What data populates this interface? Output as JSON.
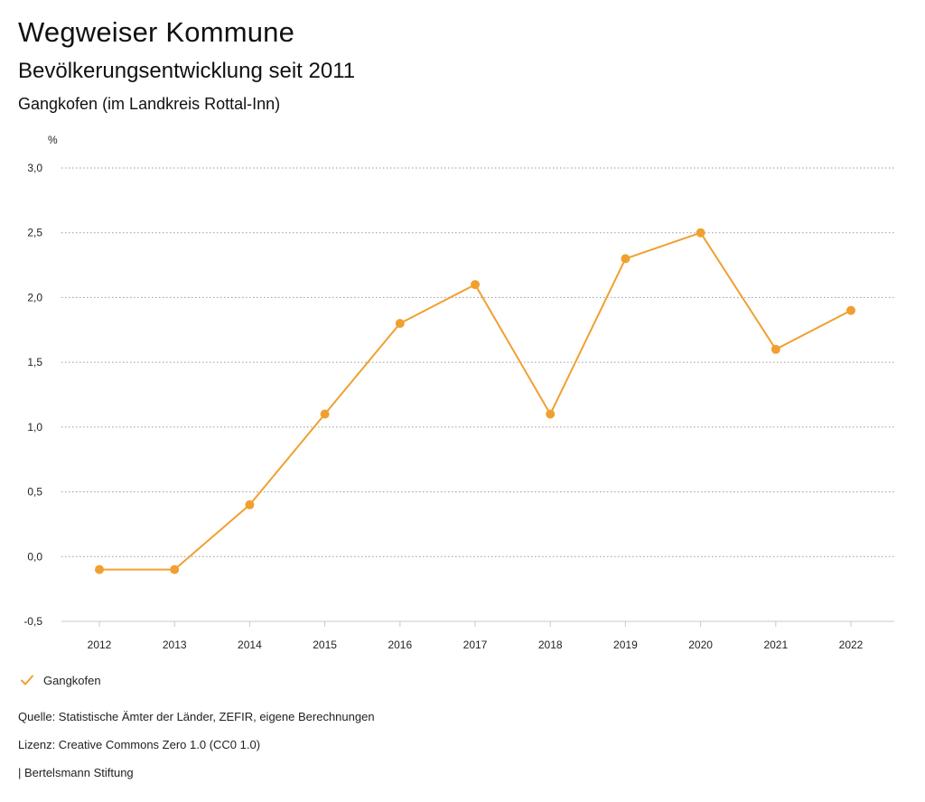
{
  "header": {
    "title": "Wegweiser Kommune",
    "subtitle": "Bevölkerungsentwicklung seit 2011",
    "region": "Gangkofen (im Landkreis Rottal-Inn)"
  },
  "chart_data": {
    "type": "line",
    "ylabel": "%",
    "categories": [
      "2012",
      "2013",
      "2014",
      "2015",
      "2016",
      "2017",
      "2018",
      "2019",
      "2020",
      "2021",
      "2022"
    ],
    "series": [
      {
        "name": "Gangkofen",
        "values": [
          -0.1,
          -0.1,
          0.4,
          1.1,
          1.8,
          2.1,
          1.1,
          2.3,
          2.5,
          1.6,
          1.9
        ]
      }
    ],
    "ylim": [
      -0.5,
      3.0
    ],
    "yticks": [
      -0.5,
      0.0,
      0.5,
      1.0,
      1.5,
      2.0,
      2.5,
      3.0
    ],
    "ytick_labels": [
      "-0,5",
      "0,0",
      "0,5",
      "1,0",
      "1,5",
      "2,0",
      "2,5",
      "3,0"
    ],
    "grid": true,
    "legend": "bottom-left",
    "colors": {
      "series": "#f0a030",
      "grid": "#9a9a9a",
      "axis": "#c8c8c8"
    }
  },
  "legend": {
    "items": [
      {
        "label": "Gangkofen",
        "icon": "check-icon"
      }
    ]
  },
  "footer": {
    "source": "Quelle: Statistische Ämter der Länder, ZEFIR, eigene Berechnungen",
    "license": "Lizenz: Creative Commons Zero 1.0 (CC0 1.0)",
    "credit": "| Bertelsmann Stiftung"
  }
}
